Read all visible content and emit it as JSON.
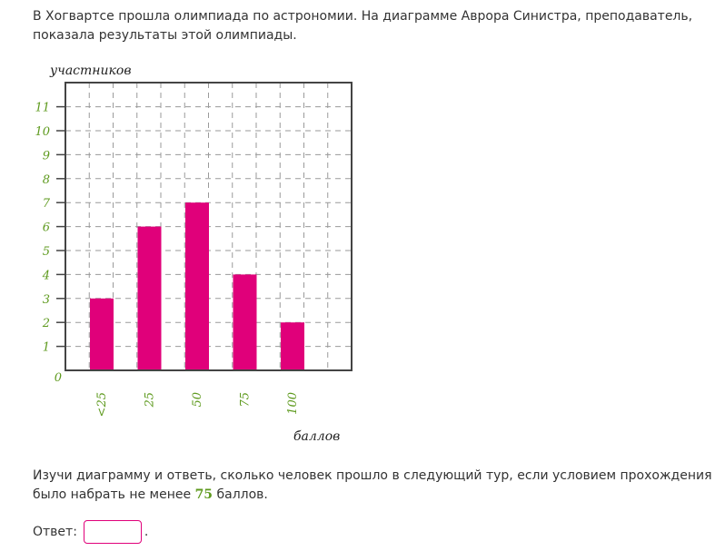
{
  "intro_text": "В Хогвартсе прошла олимпиада по астрономии. На диаграмме Аврора Синистра, преподаватель, показала результаты этой олимпиады.",
  "question": {
    "before": "Изучи диаграмму и ответь, сколько человек прошло в следующий тур, если условием прохождения было набрать не менее ",
    "number": "75",
    "after": " баллов."
  },
  "answer": {
    "label": "Ответ:",
    "value": "",
    "suffix": "."
  },
  "colors": {
    "bar": "#e0007a",
    "tick_labels": "#5e9a1e",
    "axis": "#444444",
    "grid": "#9a9a9a"
  },
  "chart_data": {
    "type": "bar",
    "categories": [
      "<25",
      "25",
      "50",
      "75",
      "100"
    ],
    "values": [
      3,
      6,
      7,
      4,
      2
    ],
    "title": "",
    "xlabel": "баллов",
    "ylabel": "участников",
    "ylim": [
      0,
      12
    ],
    "yticks": [
      0,
      1,
      2,
      3,
      4,
      5,
      6,
      7,
      8,
      9,
      10,
      11
    ],
    "grid": true,
    "legend": "none"
  }
}
